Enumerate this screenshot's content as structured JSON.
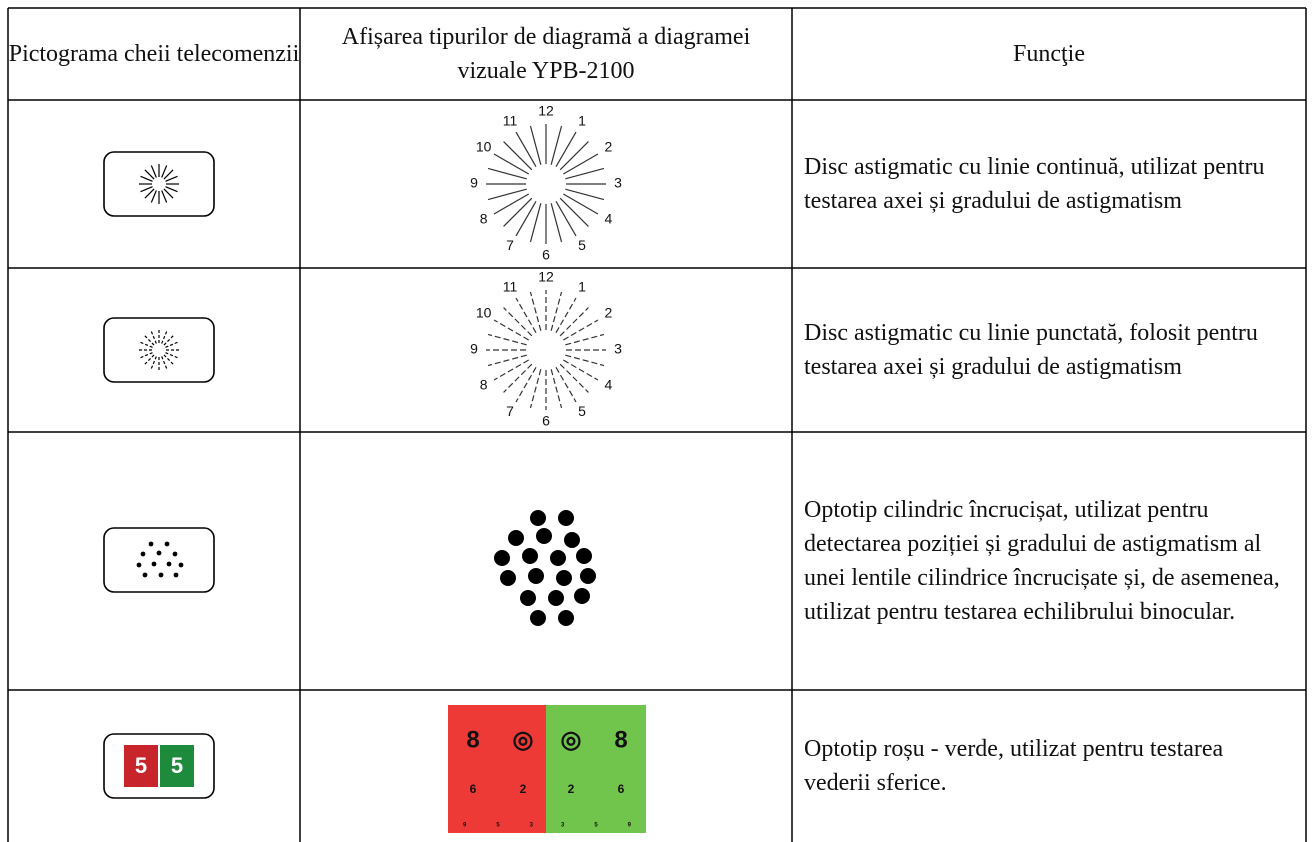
{
  "table": {
    "headers": [
      "Pictograma cheii telecomenzii",
      "Afișarea tipurilor de diagramă a diagramei vizuale YPB-2100",
      "Funcţie"
    ],
    "rows": [
      {
        "function": "Disc astigmatic cu linie continuă, utilizat pentru testarea axei și gradului de astigmatism"
      },
      {
        "function": "Disc astigmatic cu linie punctată, folosit pentru testarea axei și gradului de astigmatism"
      },
      {
        "function": "Optotip cilindric încrucișat, utilizat pentru detectarea poziției și gradului de astigmatism al unei lentile cilindrice încrucișate și, de asemenea, utilizat pentru testarea echilibrului binocular."
      },
      {
        "function": "Optotip roșu - verde, utilizat pentru testarea vederii sferice."
      }
    ]
  },
  "clock_labels": [
    "12",
    "1",
    "2",
    "3",
    "4",
    "5",
    "6",
    "7",
    "8",
    "9",
    "10",
    "11"
  ],
  "red_green_icon": [
    "5",
    "5"
  ],
  "red_green_chart": {
    "red": [
      [
        "8",
        "◎"
      ],
      [
        "6",
        "2"
      ],
      [
        "9",
        "5",
        "3"
      ]
    ],
    "green": [
      [
        "◎",
        "8"
      ],
      [
        "2",
        "6"
      ],
      [
        "3",
        "5",
        "9"
      ]
    ]
  }
}
